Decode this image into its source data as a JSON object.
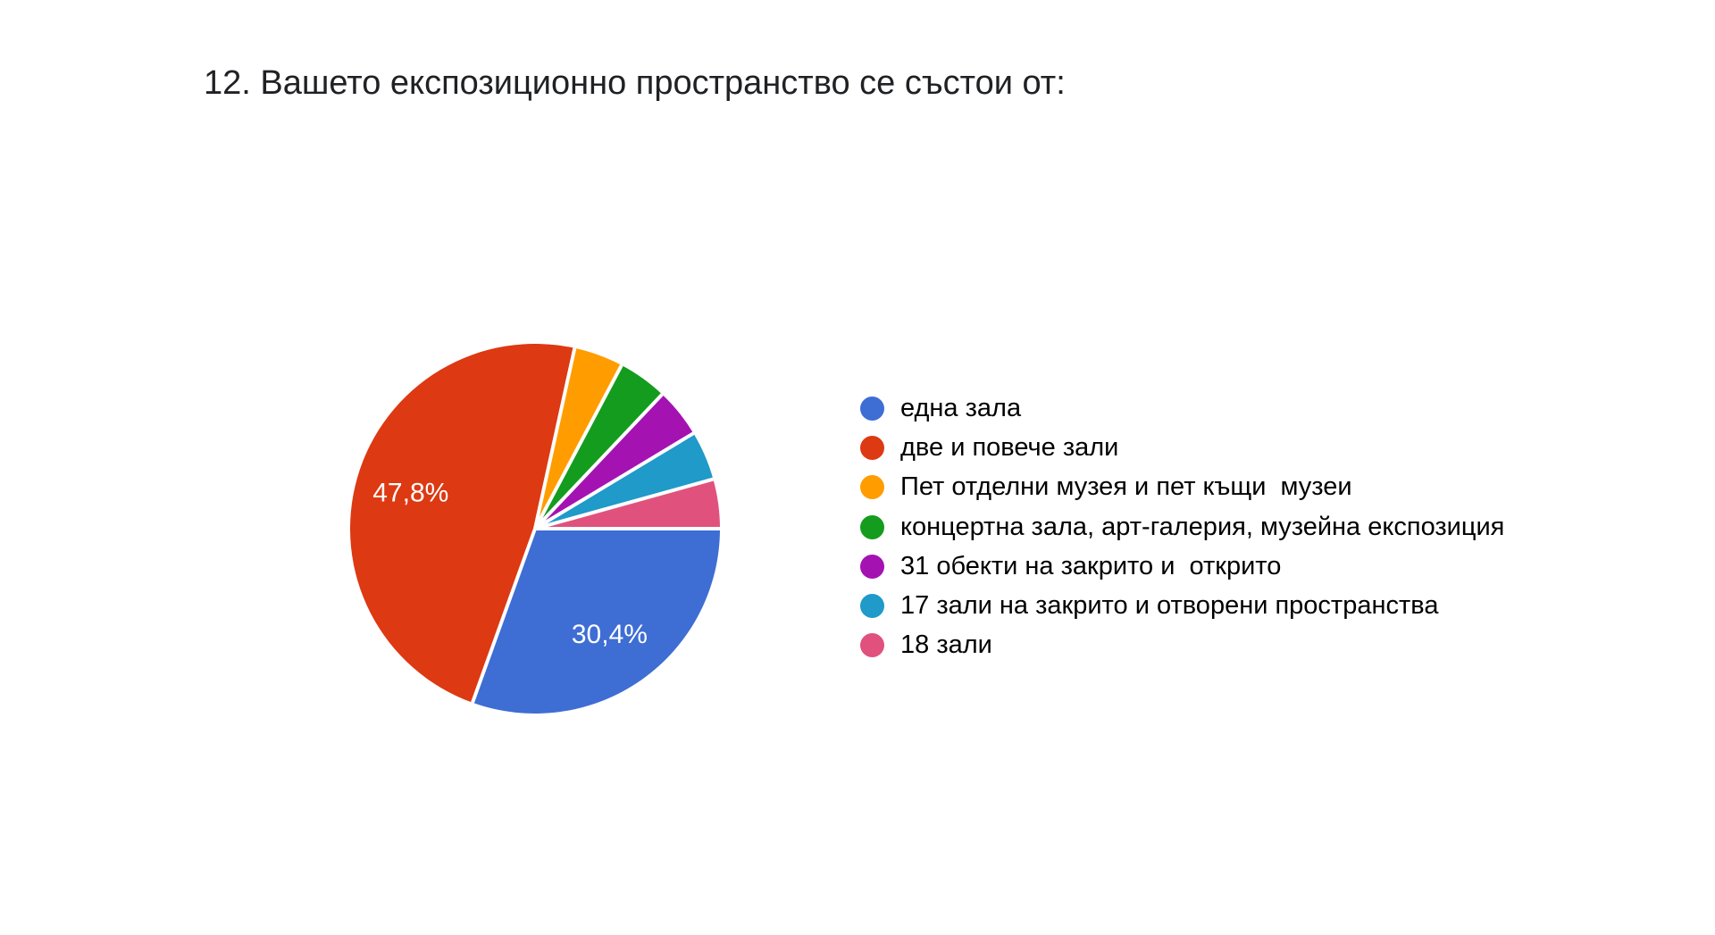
{
  "page": {
    "background": "#ffffff"
  },
  "chart_data": {
    "type": "pie",
    "title": "12. Вашето експозиционно пространство се състои от:",
    "legend_position": "right",
    "start_angle": "0 degrees (east), clockwise",
    "label_color": "#ffffff",
    "slices": [
      {
        "label": "една зала",
        "percent": 30.4,
        "display": "30,4%",
        "color": "#3E6DD4"
      },
      {
        "label": "две и повече зали",
        "percent": 47.8,
        "display": "47,8%",
        "color": "#DD3912"
      },
      {
        "label": "Пет отделни музея и пет къщи  музеи",
        "percent": 4.3,
        "display": "",
        "color": "#FF9D00"
      },
      {
        "label": "концертна зала, арт-галерия, музейна експозиция",
        "percent": 4.3,
        "display": "",
        "color": "#149C1E"
      },
      {
        "label": "31 обекти на закрито и  открито",
        "percent": 4.3,
        "display": "",
        "color": "#A413B2"
      },
      {
        "label": "17 зали на закрито и отворени пространства",
        "percent": 4.3,
        "display": "",
        "color": "#1F9AC9"
      },
      {
        "label": "18 зали",
        "percent": 4.3,
        "display": "",
        "color": "#E0527D"
      }
    ]
  }
}
